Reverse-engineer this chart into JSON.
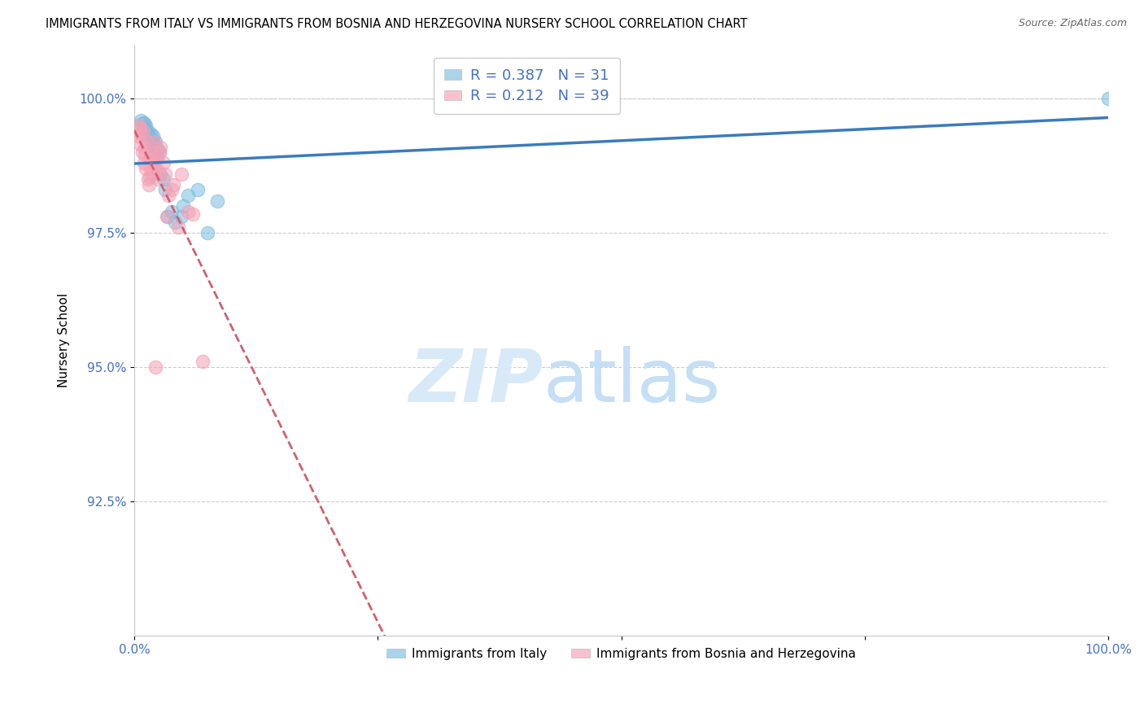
{
  "title": "IMMIGRANTS FROM ITALY VS IMMIGRANTS FROM BOSNIA AND HERZEGOVINA NURSERY SCHOOL CORRELATION CHART",
  "source": "Source: ZipAtlas.com",
  "ylabel": "Nursery School",
  "italy_R": 0.387,
  "italy_N": 31,
  "bosnia_R": 0.212,
  "bosnia_N": 39,
  "italy_color": "#7bbde0",
  "bosnia_color": "#f4a0b5",
  "italy_line_color": "#3a7bbf",
  "bosnia_line_color": "#d06070",
  "italy_x": [
    0.4,
    0.7,
    1.0,
    1.3,
    1.5,
    1.8,
    2.1,
    2.4,
    2.7,
    3.0,
    3.4,
    4.2,
    5.5,
    6.5,
    7.5,
    8.5,
    1.1,
    1.6,
    2.0,
    2.3,
    3.8,
    4.8,
    5.0,
    1.2,
    1.9,
    2.6,
    3.2,
    0.9,
    1.7,
    2.2,
    100.0
  ],
  "italy_y": [
    99.5,
    99.6,
    99.55,
    99.4,
    99.3,
    99.2,
    99.15,
    99.05,
    98.6,
    98.5,
    97.8,
    97.7,
    98.2,
    98.3,
    97.5,
    98.1,
    99.45,
    99.25,
    99.1,
    98.9,
    97.9,
    97.8,
    98.0,
    99.5,
    99.3,
    99.0,
    98.3,
    99.55,
    99.35,
    99.2,
    100.0
  ],
  "bosnia_x": [
    0.3,
    0.5,
    0.6,
    0.8,
    1.0,
    1.1,
    1.2,
    1.4,
    1.5,
    1.6,
    1.8,
    2.0,
    2.1,
    2.3,
    2.5,
    2.7,
    3.0,
    3.2,
    3.5,
    4.0,
    4.8,
    0.9,
    1.3,
    1.7,
    2.2,
    2.6,
    3.8,
    0.7,
    1.05,
    1.55,
    2.05,
    2.45,
    3.3,
    4.5,
    6.0,
    7.0,
    2.15,
    0.55,
    5.5
  ],
  "bosnia_y": [
    99.3,
    99.5,
    99.15,
    99.0,
    98.8,
    99.1,
    98.7,
    98.5,
    98.4,
    98.9,
    98.6,
    99.2,
    98.75,
    99.0,
    98.5,
    99.1,
    98.8,
    98.6,
    98.2,
    98.4,
    98.6,
    99.4,
    99.2,
    98.7,
    98.9,
    99.0,
    98.3,
    99.35,
    98.95,
    98.55,
    98.85,
    98.65,
    97.8,
    97.6,
    97.85,
    95.1,
    95.0,
    99.45,
    97.9
  ],
  "xlim": [
    0,
    100
  ],
  "ylim": [
    90.0,
    101.0
  ],
  "yticks": [
    92.5,
    95.0,
    97.5,
    100.0
  ],
  "xticks": [
    0,
    25,
    50,
    75,
    100
  ],
  "xtick_labels": [
    "0.0%",
    "",
    "",
    "",
    "100.0%"
  ],
  "ytick_labels": [
    "92.5%",
    "95.0%",
    "97.5%",
    "100.0%"
  ],
  "legend_label_italy": "Immigrants from Italy",
  "legend_label_bosnia": "Immigrants from Bosnia and Herzegovina",
  "tick_label_color": "#4472c4",
  "legend_text_color": "#4472c4"
}
